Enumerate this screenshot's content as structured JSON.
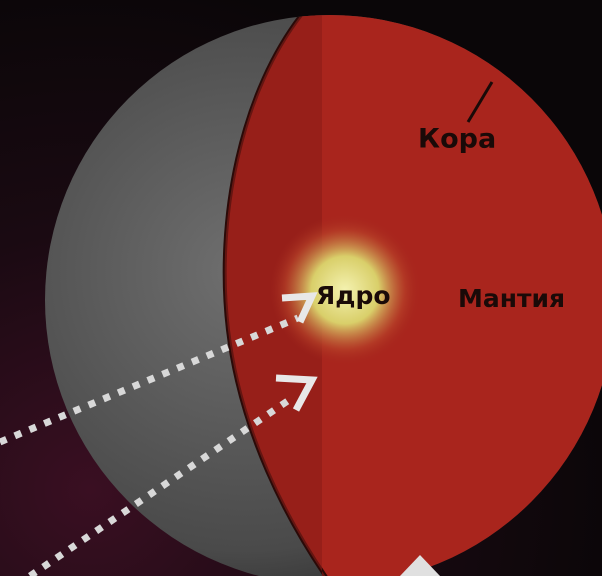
{
  "labels": {
    "crust": "Кора",
    "core": "Ядро",
    "mantle": "Мантия"
  }
}
